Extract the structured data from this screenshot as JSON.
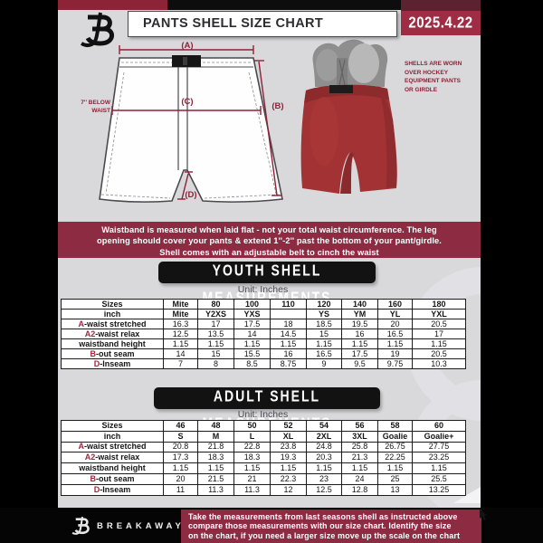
{
  "header": {
    "title": "PANTS SHELL SIZE CHART",
    "date": "2025.4.22"
  },
  "diagram": {
    "label_a": "(A)",
    "label_b": "(B)",
    "label_c": "(C)",
    "label_d": "(D)",
    "below_waist_line1": "7'' BELOW",
    "below_waist_line2": "WAIST"
  },
  "photo": {
    "note_line1": "SHELLS ARE WORN",
    "note_line2": "OVER HOCKEY",
    "note_line3": "EQUIPMENT PANTS",
    "note_line4": "OR GIRDLE"
  },
  "banner": {
    "lines": [
      "Waistband is measured when laid flat - not your total waist circumference. The leg",
      "opening should cover your pants & extend 1''-2'' past the bottom of your pant/girdle.",
      "Shell comes with an adjustable belt to cinch the waist"
    ]
  },
  "youth": {
    "heading": "YOUTH SHELL MEASUREMENTS",
    "unit": "Unit: Inches",
    "rows": [
      {
        "prefix": "",
        "label": "Sizes",
        "bold": true,
        "values": [
          "Mite",
          "80",
          "100",
          "110",
          "120",
          "140",
          "160",
          "180"
        ]
      },
      {
        "prefix": "",
        "label": "inch",
        "bold": true,
        "values": [
          "Mite",
          "Y2XS",
          "YXS",
          "",
          "YS",
          "YM",
          "YL",
          "YXL"
        ]
      },
      {
        "prefix": "A",
        "label": "-waist stretched",
        "bold": false,
        "values": [
          "16.3",
          "17",
          "17.5",
          "18",
          "18.5",
          "19.5",
          "20",
          "20.5"
        ]
      },
      {
        "prefix": "A2",
        "label": "-waist relax",
        "bold": false,
        "values": [
          "12.5",
          "13.5",
          "14",
          "14.5",
          "15",
          "16",
          "16.5",
          "17"
        ]
      },
      {
        "prefix": "",
        "label": "waistband height",
        "bold": false,
        "values": [
          "1.15",
          "1.15",
          "1.15",
          "1.15",
          "1.15",
          "1.15",
          "1.15",
          "1.15"
        ]
      },
      {
        "prefix": "B",
        "label": "-out seam",
        "bold": false,
        "values": [
          "14",
          "15",
          "15.5",
          "16",
          "16.5",
          "17.5",
          "19",
          "20.5"
        ]
      },
      {
        "prefix": "D",
        "label": "-Inseam",
        "bold": false,
        "values": [
          "7",
          "8",
          "8.5",
          "8.75",
          "9",
          "9.5",
          "9.75",
          "10.3"
        ]
      }
    ]
  },
  "adult": {
    "heading": "ADULT SHELL MEASUREMENTS",
    "unit": "Unit: Inches",
    "rows": [
      {
        "prefix": "",
        "label": "Sizes",
        "bold": true,
        "values": [
          "46",
          "48",
          "50",
          "52",
          "54",
          "56",
          "58",
          "60"
        ]
      },
      {
        "prefix": "",
        "label": "inch",
        "bold": true,
        "values": [
          "S",
          "M",
          "L",
          "XL",
          "2XL",
          "3XL",
          "Goalie",
          "Goalie+"
        ]
      },
      {
        "prefix": "A",
        "label": "-waist stretched",
        "bold": false,
        "values": [
          "20.8",
          "21.8",
          "22.8",
          "23.8",
          "24.8",
          "25.8",
          "26.75",
          "27.75"
        ]
      },
      {
        "prefix": "A2",
        "label": "-waist relax",
        "bold": false,
        "values": [
          "17.3",
          "18.3",
          "18.3",
          "19.3",
          "20.3",
          "21.3",
          "22.25",
          "23.25"
        ]
      },
      {
        "prefix": "",
        "label": "waistband height",
        "bold": false,
        "values": [
          "1.15",
          "1.15",
          "1.15",
          "1.15",
          "1.15",
          "1.15",
          "1.15",
          "1.15"
        ]
      },
      {
        "prefix": "B",
        "label": "-out seam",
        "bold": false,
        "values": [
          "20",
          "21.5",
          "21",
          "22.3",
          "23",
          "24",
          "25",
          "25.5"
        ]
      },
      {
        "prefix": "D",
        "label": "-Inseam",
        "bold": false,
        "values": [
          "11",
          "11.3",
          "11.3",
          "12",
          "12.5",
          "12.8",
          "13",
          "13.25"
        ]
      }
    ]
  },
  "footer": {
    "brand": "BREAKAWAY",
    "lines": [
      "Take the measurements from last seasons shell as instructed above",
      "compare those measurements  with our size chart. Identify the size",
      "on the chart, if you need a larger size move up the scale on the chart"
    ]
  },
  "colors": {
    "maroon_banner": "#8c2b42",
    "maroon_date_box": "#9e2c44",
    "black_box": "#121212",
    "accent_red": "#a4243a",
    "content_bg": "#d9d9dc",
    "shell_red": "#a23233"
  }
}
